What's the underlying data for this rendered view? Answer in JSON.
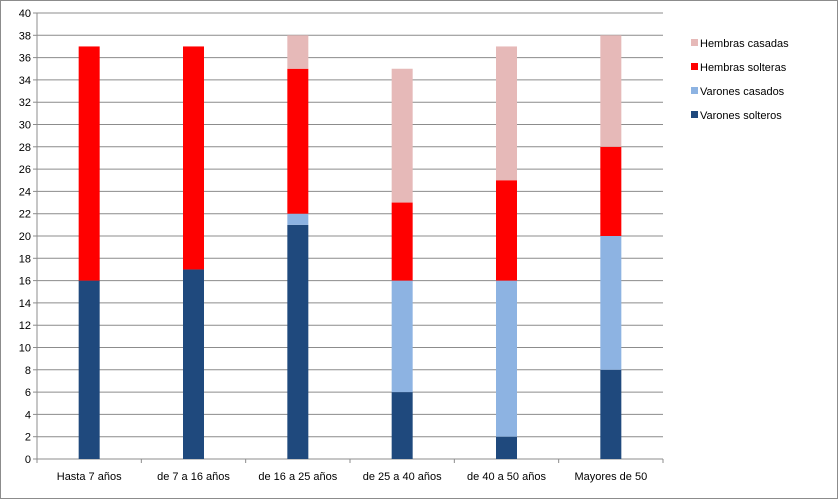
{
  "chart_data": {
    "type": "bar",
    "stacked": true,
    "categories": [
      "Hasta 7 años",
      "de 7 a 16 años",
      "de 16 a 25 años",
      "de 25 a 40 años",
      "de 40 a 50 años",
      "Mayores de 50"
    ],
    "series": [
      {
        "name": "Varones solteros",
        "color": "#1f497d",
        "values": [
          16,
          17,
          21,
          6,
          2,
          8
        ]
      },
      {
        "name": "Varones casados",
        "color": "#8db3e2",
        "values": [
          0,
          0,
          1,
          10,
          14,
          12
        ]
      },
      {
        "name": "Hembras solteras",
        "color": "#ff0000",
        "values": [
          21,
          20,
          13,
          7,
          9,
          8
        ]
      },
      {
        "name": "Hembras casadas",
        "color": "#e6b9b8",
        "values": [
          0,
          0,
          3,
          12,
          12,
          10
        ]
      }
    ],
    "ylim": [
      0,
      40
    ],
    "ytick_step": 2,
    "grid": true,
    "legend_position": "right",
    "title": "",
    "xlabel": "",
    "ylabel": ""
  }
}
